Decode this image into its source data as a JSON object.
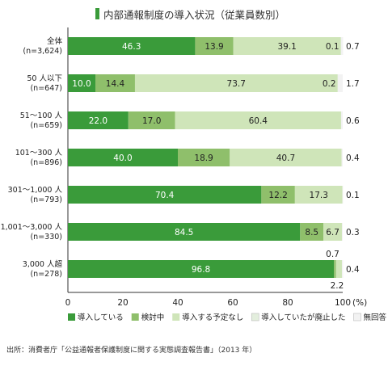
{
  "title": "内部通報制度の導入状況（従業員数別）",
  "source": "出所：消費者庁「公益通報者保護制度に関する実態調査報告書」（2013 年）",
  "colors": {
    "series": [
      "#3a9b3a",
      "#8fbf6b",
      "#cfe5b9",
      "#e3eedd",
      "#f2f2f2"
    ],
    "title_mark": "#3a9b3a"
  },
  "chart_data": {
    "type": "bar",
    "orientation": "horizontal",
    "stacked": true,
    "xlim": [
      0,
      100
    ],
    "unit_label": "(%)",
    "xticks": [
      "0",
      "20",
      "40",
      "60",
      "80",
      "100"
    ],
    "legend_position": "bottom",
    "categories": [
      {
        "label": "全体",
        "sublabel": "(n=3,624)"
      },
      {
        "label": "50 人以下",
        "sublabel": "(n=647)"
      },
      {
        "label": "51～100 人",
        "sublabel": "(n=659)"
      },
      {
        "label": "101～300 人",
        "sublabel": "(n=896)"
      },
      {
        "label": "301～1,000 人",
        "sublabel": "(n=793)"
      },
      {
        "label": "1,001～3,000 人",
        "sublabel": "(n=330)"
      },
      {
        "label": "3,000 人超",
        "sublabel": "(n=278)"
      }
    ],
    "series": [
      {
        "name": "導入している",
        "values": [
          46.3,
          10.0,
          22.0,
          40.0,
          70.4,
          84.5,
          96.8
        ],
        "labels": [
          "46.3",
          "10.0",
          "22.0",
          "40.0",
          "70.4",
          "84.5",
          "96.8"
        ]
      },
      {
        "name": "検討中",
        "values": [
          13.9,
          14.4,
          17.0,
          18.9,
          12.2,
          8.5,
          0.7
        ],
        "labels": [
          "13.9",
          "14.4",
          "17.0",
          "18.9",
          "12.2",
          "8.5",
          "0.7"
        ]
      },
      {
        "name": "導入する予定なし",
        "values": [
          39.1,
          73.7,
          60.4,
          40.7,
          17.3,
          6.7,
          2.2
        ],
        "labels": [
          "39.1",
          "73.7",
          "60.4",
          "40.7",
          "17.3",
          "6.7",
          "2.2"
        ]
      },
      {
        "name": "導入していたが廃止した",
        "values": [
          0.1,
          0.2,
          0.0,
          0.0,
          0.0,
          0.0,
          0.0
        ],
        "labels": [
          "0.1",
          "0.2",
          "",
          "",
          "",
          "",
          ""
        ]
      },
      {
        "name": "無回答",
        "values": [
          0.7,
          1.7,
          0.6,
          0.4,
          0.1,
          0.3,
          0.4
        ],
        "labels": [
          "0.7",
          "1.7",
          "0.6",
          "0.4",
          "0.1",
          "0.3",
          "0.4"
        ]
      }
    ]
  }
}
